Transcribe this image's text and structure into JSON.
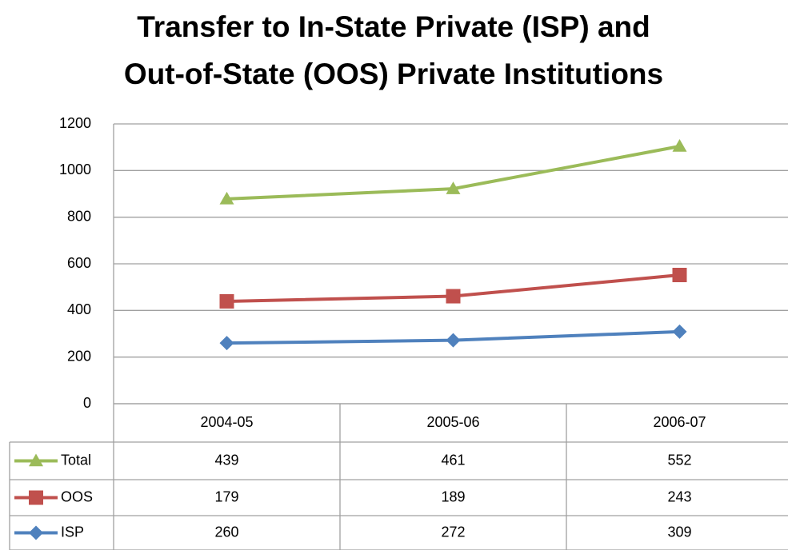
{
  "chart_data": {
    "type": "line",
    "stacked": true,
    "title": [
      "Transfer to In-State Private (ISP) and",
      "Out-of-State (OOS) Private Institutions"
    ],
    "categories": [
      "2004-05",
      "2005-06",
      "2006-07"
    ],
    "series": [
      {
        "name": "Total",
        "color": "#9bbb59",
        "marker": "triangle",
        "values": [
          439,
          461,
          552
        ]
      },
      {
        "name": "OOS",
        "color": "#c0504d",
        "marker": "square",
        "values": [
          179,
          189,
          243
        ]
      },
      {
        "name": "ISP",
        "color": "#4f81bd",
        "marker": "diamond",
        "values": [
          260,
          272,
          309
        ]
      }
    ],
    "ylim": [
      0,
      1200
    ],
    "yticks": [
      0,
      200,
      400,
      600,
      800,
      1000,
      1200
    ],
    "grid": true,
    "data_table": true
  }
}
